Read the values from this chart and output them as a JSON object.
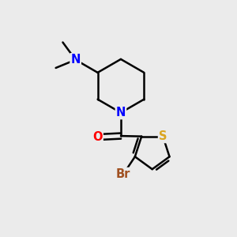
{
  "background_color": "#EBEBEB",
  "bond_color": "#000000",
  "bond_width": 1.8,
  "atom_colors": {
    "N": "#0000FF",
    "O": "#FF0000",
    "S": "#DAA520",
    "Br": "#A05020",
    "C": "#000000"
  },
  "font_size": 10.5
}
